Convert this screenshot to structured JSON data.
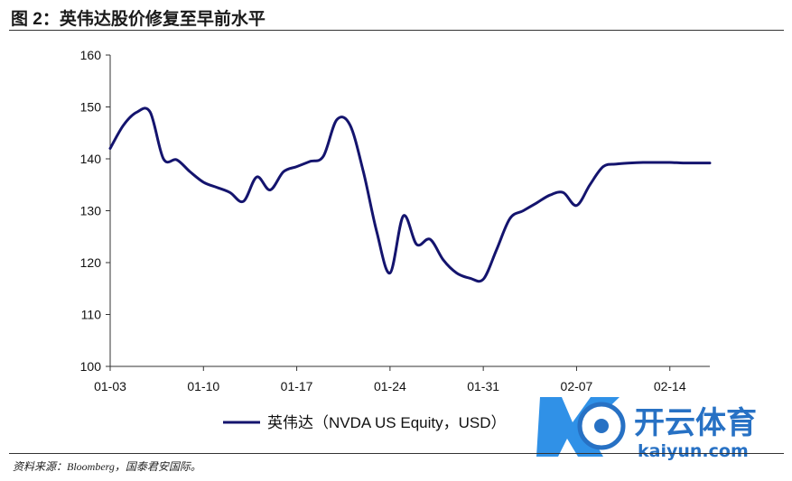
{
  "figure": {
    "title": "图 2：英伟达股价修复至早前水平",
    "source": "资料来源：Bloomberg，国泰君安国际。"
  },
  "watermark": {
    "brand": "开云体育",
    "domain": "kaiyun.com"
  },
  "colors": {
    "series": "#14146e",
    "axis": "#333333"
  },
  "chart_data": {
    "type": "line",
    "title": "",
    "xlabel": "",
    "ylabel": "",
    "ylim": [
      100,
      160
    ],
    "yticks": [
      100,
      110,
      120,
      130,
      140,
      150,
      160
    ],
    "xlim": [
      "2023-01-03",
      "2023-02-17"
    ],
    "xticks": [
      "01-03",
      "01-10",
      "01-17",
      "01-24",
      "01-31",
      "02-07",
      "02-14"
    ],
    "grid": false,
    "legend_position": "bottom",
    "series": [
      {
        "name": "英伟达（NVDA US Equity，USD）",
        "x": [
          "2023-01-03",
          "2023-01-04",
          "2023-01-05",
          "2023-01-06",
          "2023-01-07",
          "2023-01-08",
          "2023-01-09",
          "2023-01-10",
          "2023-01-11",
          "2023-01-12",
          "2023-01-13",
          "2023-01-14",
          "2023-01-15",
          "2023-01-16",
          "2023-01-17",
          "2023-01-18",
          "2023-01-19",
          "2023-01-20",
          "2023-01-21",
          "2023-01-22",
          "2023-01-23",
          "2023-01-24",
          "2023-01-25",
          "2023-01-26",
          "2023-01-27",
          "2023-01-28",
          "2023-01-29",
          "2023-01-30",
          "2023-01-31",
          "2023-02-01",
          "2023-02-02",
          "2023-02-03",
          "2023-02-04",
          "2023-02-05",
          "2023-02-06",
          "2023-02-07",
          "2023-02-08",
          "2023-02-09",
          "2023-02-10",
          "2023-02-11",
          "2023-02-12",
          "2023-02-13",
          "2023-02-14",
          "2023-02-15",
          "2023-02-16",
          "2023-02-17"
        ],
        "values": [
          142.0,
          146.5,
          149.0,
          149.0,
          140.0,
          139.8,
          137.5,
          135.5,
          134.5,
          133.5,
          131.8,
          136.5,
          134.0,
          137.5,
          138.5,
          139.5,
          140.5,
          147.5,
          146.5,
          137.5,
          126.0,
          118.0,
          129.0,
          123.5,
          124.5,
          120.5,
          118.0,
          117.0,
          116.8,
          122.5,
          128.5,
          130.0,
          131.5,
          133.0,
          133.5,
          131.0,
          135.0,
          138.5,
          139.0,
          139.2,
          139.3,
          139.3,
          139.3,
          139.2,
          139.2,
          139.2
        ]
      }
    ]
  }
}
